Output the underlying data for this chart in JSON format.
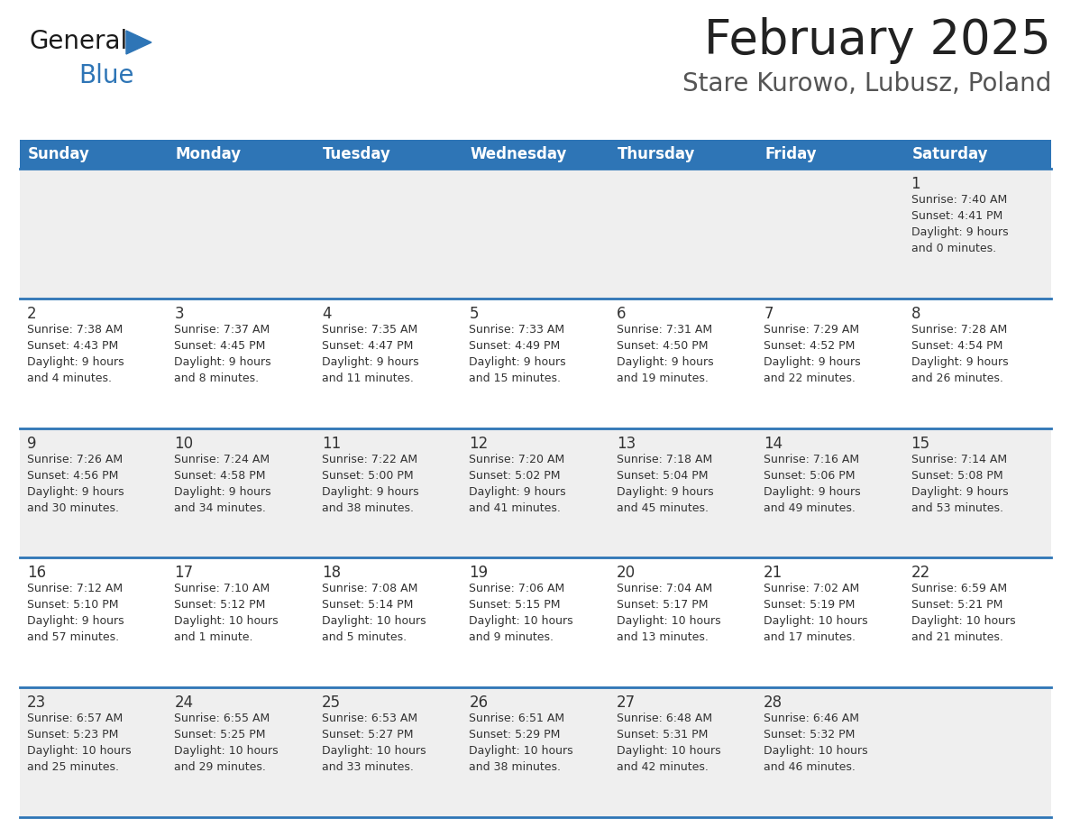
{
  "title": "February 2025",
  "subtitle": "Stare Kurowo, Lubusz, Poland",
  "header_bg": "#2E75B6",
  "header_text": "#FFFFFF",
  "cell_bg_odd": "#EFEFEF",
  "cell_bg_even": "#FFFFFF",
  "cell_text": "#333333",
  "day_number_color": "#333333",
  "separator_color": "#2E75B6",
  "days_of_week": [
    "Sunday",
    "Monday",
    "Tuesday",
    "Wednesday",
    "Thursday",
    "Friday",
    "Saturday"
  ],
  "weeks": [
    [
      {
        "day": null,
        "info": null
      },
      {
        "day": null,
        "info": null
      },
      {
        "day": null,
        "info": null
      },
      {
        "day": null,
        "info": null
      },
      {
        "day": null,
        "info": null
      },
      {
        "day": null,
        "info": null
      },
      {
        "day": 1,
        "info": "Sunrise: 7:40 AM\nSunset: 4:41 PM\nDaylight: 9 hours\nand 0 minutes."
      }
    ],
    [
      {
        "day": 2,
        "info": "Sunrise: 7:38 AM\nSunset: 4:43 PM\nDaylight: 9 hours\nand 4 minutes."
      },
      {
        "day": 3,
        "info": "Sunrise: 7:37 AM\nSunset: 4:45 PM\nDaylight: 9 hours\nand 8 minutes."
      },
      {
        "day": 4,
        "info": "Sunrise: 7:35 AM\nSunset: 4:47 PM\nDaylight: 9 hours\nand 11 minutes."
      },
      {
        "day": 5,
        "info": "Sunrise: 7:33 AM\nSunset: 4:49 PM\nDaylight: 9 hours\nand 15 minutes."
      },
      {
        "day": 6,
        "info": "Sunrise: 7:31 AM\nSunset: 4:50 PM\nDaylight: 9 hours\nand 19 minutes."
      },
      {
        "day": 7,
        "info": "Sunrise: 7:29 AM\nSunset: 4:52 PM\nDaylight: 9 hours\nand 22 minutes."
      },
      {
        "day": 8,
        "info": "Sunrise: 7:28 AM\nSunset: 4:54 PM\nDaylight: 9 hours\nand 26 minutes."
      }
    ],
    [
      {
        "day": 9,
        "info": "Sunrise: 7:26 AM\nSunset: 4:56 PM\nDaylight: 9 hours\nand 30 minutes."
      },
      {
        "day": 10,
        "info": "Sunrise: 7:24 AM\nSunset: 4:58 PM\nDaylight: 9 hours\nand 34 minutes."
      },
      {
        "day": 11,
        "info": "Sunrise: 7:22 AM\nSunset: 5:00 PM\nDaylight: 9 hours\nand 38 minutes."
      },
      {
        "day": 12,
        "info": "Sunrise: 7:20 AM\nSunset: 5:02 PM\nDaylight: 9 hours\nand 41 minutes."
      },
      {
        "day": 13,
        "info": "Sunrise: 7:18 AM\nSunset: 5:04 PM\nDaylight: 9 hours\nand 45 minutes."
      },
      {
        "day": 14,
        "info": "Sunrise: 7:16 AM\nSunset: 5:06 PM\nDaylight: 9 hours\nand 49 minutes."
      },
      {
        "day": 15,
        "info": "Sunrise: 7:14 AM\nSunset: 5:08 PM\nDaylight: 9 hours\nand 53 minutes."
      }
    ],
    [
      {
        "day": 16,
        "info": "Sunrise: 7:12 AM\nSunset: 5:10 PM\nDaylight: 9 hours\nand 57 minutes."
      },
      {
        "day": 17,
        "info": "Sunrise: 7:10 AM\nSunset: 5:12 PM\nDaylight: 10 hours\nand 1 minute."
      },
      {
        "day": 18,
        "info": "Sunrise: 7:08 AM\nSunset: 5:14 PM\nDaylight: 10 hours\nand 5 minutes."
      },
      {
        "day": 19,
        "info": "Sunrise: 7:06 AM\nSunset: 5:15 PM\nDaylight: 10 hours\nand 9 minutes."
      },
      {
        "day": 20,
        "info": "Sunrise: 7:04 AM\nSunset: 5:17 PM\nDaylight: 10 hours\nand 13 minutes."
      },
      {
        "day": 21,
        "info": "Sunrise: 7:02 AM\nSunset: 5:19 PM\nDaylight: 10 hours\nand 17 minutes."
      },
      {
        "day": 22,
        "info": "Sunrise: 6:59 AM\nSunset: 5:21 PM\nDaylight: 10 hours\nand 21 minutes."
      }
    ],
    [
      {
        "day": 23,
        "info": "Sunrise: 6:57 AM\nSunset: 5:23 PM\nDaylight: 10 hours\nand 25 minutes."
      },
      {
        "day": 24,
        "info": "Sunrise: 6:55 AM\nSunset: 5:25 PM\nDaylight: 10 hours\nand 29 minutes."
      },
      {
        "day": 25,
        "info": "Sunrise: 6:53 AM\nSunset: 5:27 PM\nDaylight: 10 hours\nand 33 minutes."
      },
      {
        "day": 26,
        "info": "Sunrise: 6:51 AM\nSunset: 5:29 PM\nDaylight: 10 hours\nand 38 minutes."
      },
      {
        "day": 27,
        "info": "Sunrise: 6:48 AM\nSunset: 5:31 PM\nDaylight: 10 hours\nand 42 minutes."
      },
      {
        "day": 28,
        "info": "Sunrise: 6:46 AM\nSunset: 5:32 PM\nDaylight: 10 hours\nand 46 minutes."
      },
      {
        "day": null,
        "info": null
      }
    ]
  ],
  "logo_text1": "General",
  "logo_text2": "Blue",
  "logo_color1": "#1a1a1a",
  "logo_color2": "#2E75B6",
  "title_color": "#222222",
  "subtitle_color": "#555555"
}
